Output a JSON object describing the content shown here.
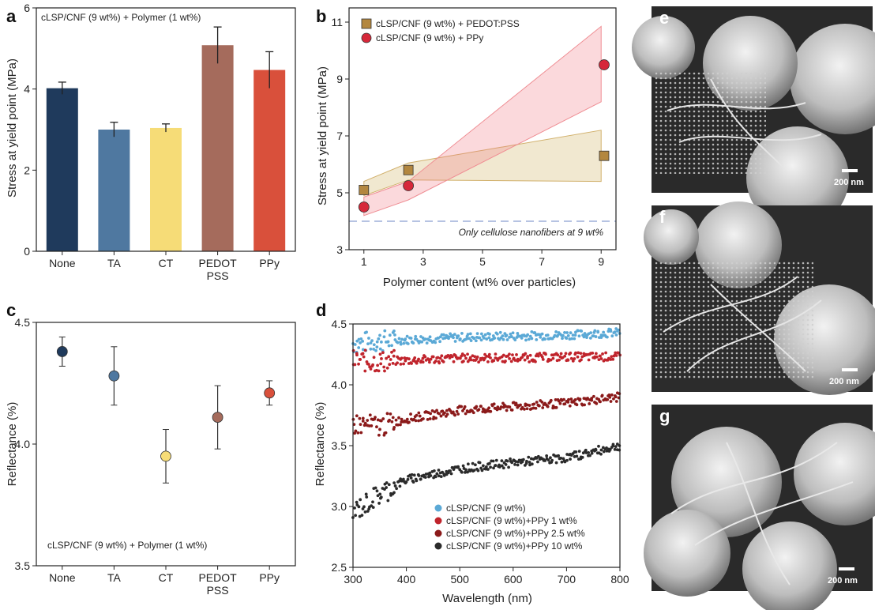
{
  "colors": {
    "navy": "#1f3a5c",
    "steel": "#4f78a0",
    "yellow": "#f6dc77",
    "brown": "#a56b5c",
    "red": "#d9503b",
    "gold": "#b3873f",
    "blue": "#5ba9d6",
    "crimson": "#c0242c",
    "maroon": "#8b1a1a",
    "dark": "#2b2b2b"
  },
  "chart_data": [
    {
      "panel": "a",
      "type": "bar",
      "title": "cLSP/CNF (9 wt%) + Polymer (1 wt%)",
      "xlabel": "",
      "ylabel": "Stress at yield point (MPa)",
      "categories": [
        "None",
        "TA",
        "CT",
        "PEDOT\nPSS",
        "PPy"
      ],
      "category_lines": [
        [
          "None"
        ],
        [
          "TA"
        ],
        [
          "CT"
        ],
        [
          "PEDOT",
          "PSS"
        ],
        [
          "PPy"
        ]
      ],
      "values": [
        4.02,
        3.0,
        3.04,
        5.08,
        4.47
      ],
      "errors": [
        0.15,
        0.18,
        0.1,
        0.45,
        0.45
      ],
      "colors": [
        "#1f3a5c",
        "#4f78a0",
        "#f6dc77",
        "#a56b5c",
        "#d9503b"
      ],
      "ylim": [
        0,
        6
      ],
      "yticks": [
        0,
        2,
        4,
        6
      ]
    },
    {
      "panel": "b",
      "type": "scatter",
      "xlabel": "Polymer content (wt% over particles)",
      "ylabel": "Stress at yield point (MPa)",
      "xlim": [
        0.5,
        9.5
      ],
      "ylim": [
        3,
        11.5
      ],
      "xticks": [
        1,
        3,
        5,
        7,
        9
      ],
      "yticks": [
        3,
        5,
        7,
        9,
        11
      ],
      "reference_line": {
        "y": 4.0,
        "label": "Only cellulose nanofibers at 9 wt%"
      },
      "series": [
        {
          "name": "cLSP/CNF (9 wt%) + PEDOT:PSS",
          "marker": "square",
          "x": [
            1,
            2.5,
            9.1
          ],
          "y": [
            5.1,
            5.8,
            6.3
          ],
          "band_x": [
            1,
            2.5,
            9
          ],
          "band_low": [
            4.9,
            5.45,
            5.4
          ],
          "band_high": [
            5.4,
            6.05,
            7.2
          ]
        },
        {
          "name": "cLSP/CNF (9 wt%) + PPy",
          "marker": "circle",
          "x": [
            1,
            2.5,
            9.1
          ],
          "y": [
            4.5,
            5.25,
            9.5
          ],
          "band_x": [
            1,
            2.5,
            9
          ],
          "band_low": [
            4.2,
            4.75,
            8.2
          ],
          "band_high": [
            4.85,
            5.4,
            10.85
          ]
        }
      ]
    },
    {
      "panel": "c",
      "type": "scatter",
      "title": "cLSP/CNF (9 wt%) + Polymer (1 wt%)",
      "xlabel": "",
      "ylabel": "Reflectance (%)",
      "categories": [
        "None",
        "TA",
        "CT",
        "PEDOT\nPSS",
        "PPy"
      ],
      "category_lines": [
        [
          "None"
        ],
        [
          "TA"
        ],
        [
          "CT"
        ],
        [
          "PEDOT",
          "PSS"
        ],
        [
          "PPy"
        ]
      ],
      "values": [
        4.38,
        4.28,
        3.95,
        4.11,
        4.21
      ],
      "errors": [
        0.06,
        0.12,
        0.11,
        0.13,
        0.05
      ],
      "colors": [
        "#1f3a5c",
        "#4f78a0",
        "#f6dc77",
        "#a56b5c",
        "#d9503b"
      ],
      "ylim": [
        3.5,
        4.5
      ],
      "yticks": [
        "3.5",
        "4.0",
        "4.5"
      ]
    },
    {
      "panel": "d",
      "type": "scatter",
      "xlabel": "Wavelength (nm)",
      "ylabel": "Reflectance (%)",
      "xlim": [
        300,
        800
      ],
      "ylim": [
        2.5,
        4.5
      ],
      "xticks": [
        300,
        400,
        500,
        600,
        700,
        800
      ],
      "yticks": [
        "2.5",
        "3.0",
        "3.5",
        "4.0",
        "4.5"
      ],
      "series": [
        {
          "name": "cLSP/CNF (9 wt%)",
          "color": "#5ba9d6",
          "x": [
            300,
            350,
            400,
            500,
            600,
            700,
            800
          ],
          "y": [
            4.34,
            4.36,
            4.37,
            4.39,
            4.4,
            4.41,
            4.43
          ]
        },
        {
          "name": "cLSP/CNF (9 wt%)+PPy 1 wt%",
          "color": "#c0242c",
          "x": [
            300,
            350,
            400,
            500,
            600,
            700,
            800
          ],
          "y": [
            4.2,
            4.19,
            4.2,
            4.22,
            4.22,
            4.23,
            4.23
          ]
        },
        {
          "name": "cLSP/CNF (9 wt%)+PPy 2.5 wt%",
          "color": "#8b1a1a",
          "x": [
            300,
            350,
            400,
            500,
            600,
            700,
            800
          ],
          "y": [
            3.68,
            3.66,
            3.72,
            3.79,
            3.82,
            3.85,
            3.9
          ]
        },
        {
          "name": "cLSP/CNF (9 wt%)+PPy 10 wt%",
          "color": "#2b2b2b",
          "x": [
            300,
            350,
            400,
            500,
            600,
            700,
            800
          ],
          "y": [
            2.95,
            3.1,
            3.22,
            3.31,
            3.36,
            3.4,
            3.5
          ]
        }
      ]
    }
  ],
  "panels": {
    "a": "a",
    "b": "b",
    "c": "c",
    "d": "d",
    "e": "e",
    "f": "f",
    "g": "g"
  },
  "sem_images": [
    {
      "panel": "e",
      "scale": "200 nm"
    },
    {
      "panel": "f",
      "scale": "200 nm"
    },
    {
      "panel": "g",
      "scale": "200 nm"
    }
  ]
}
